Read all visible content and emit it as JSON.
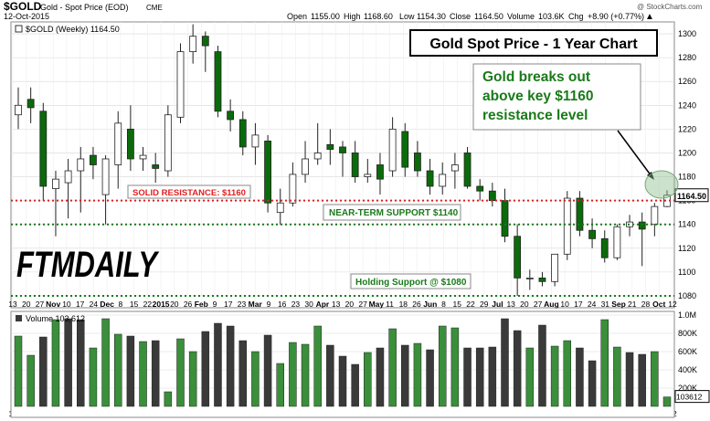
{
  "header": {
    "ticker": "$GOLD",
    "name": "Gold - Spot Price (EOD)",
    "exchange": "CME",
    "copyright": "@ StockCharts.com",
    "date": "12-Oct-2015",
    "open_label": "Open",
    "open_value": "1155.00",
    "high_label": "High",
    "high_value": "1168.60",
    "low_label": "Low",
    "low_value": "1154.30",
    "close_label": "Close",
    "close_value": "1164.50",
    "volume_label": "Volume",
    "volume_value": "103.6K",
    "chg_label": "Chg",
    "chg_value": "+8.90 (+0.77%)"
  },
  "chart_data": [
    {
      "type": "candlestick",
      "legend": "$GOLD (Weekly) 1164.50",
      "title": "Gold Spot Price - 1 Year Chart",
      "ylim": [
        1070,
        1310
      ],
      "y_ticks": [
        1080,
        1100,
        1120,
        1140,
        1160,
        1180,
        1200,
        1220,
        1240,
        1260,
        1280,
        1300
      ],
      "last_price_label": "1164.50",
      "x_tick_labels": [
        "13",
        "20",
        "27",
        "Nov",
        "10",
        "17",
        "24",
        "Dec",
        "8",
        "15",
        "22",
        "2015",
        "20",
        "26",
        "Feb",
        "9",
        "17",
        "23",
        "Mar",
        "9",
        "16",
        "23",
        "30",
        "Apr",
        "13",
        "20",
        "27",
        "May",
        "11",
        "18",
        "26",
        "Jun",
        "8",
        "15",
        "22",
        "29",
        "Jul",
        "13",
        "20",
        "27",
        "Aug",
        "10",
        "17",
        "24",
        "31",
        "Sep",
        "21",
        "28",
        "Oct",
        "12"
      ],
      "candles": [
        {
          "o": 1232,
          "h": 1255,
          "l": 1220,
          "c": 1240
        },
        {
          "o": 1245,
          "h": 1255,
          "l": 1225,
          "c": 1238
        },
        {
          "o": 1235,
          "h": 1242,
          "l": 1160,
          "c": 1172
        },
        {
          "o": 1170,
          "h": 1185,
          "l": 1130,
          "c": 1178
        },
        {
          "o": 1175,
          "h": 1195,
          "l": 1145,
          "c": 1185
        },
        {
          "o": 1185,
          "h": 1205,
          "l": 1150,
          "c": 1195
        },
        {
          "o": 1198,
          "h": 1205,
          "l": 1178,
          "c": 1190
        },
        {
          "o": 1165,
          "h": 1198,
          "l": 1140,
          "c": 1195
        },
        {
          "o": 1190,
          "h": 1235,
          "l": 1170,
          "c": 1225
        },
        {
          "o": 1220,
          "h": 1240,
          "l": 1185,
          "c": 1195
        },
        {
          "o": 1195,
          "h": 1205,
          "l": 1185,
          "c": 1198
        },
        {
          "o": 1190,
          "h": 1200,
          "l": 1175,
          "c": 1187
        },
        {
          "o": 1185,
          "h": 1240,
          "l": 1180,
          "c": 1232
        },
        {
          "o": 1230,
          "h": 1292,
          "l": 1225,
          "c": 1285
        },
        {
          "o": 1285,
          "h": 1308,
          "l": 1275,
          "c": 1298
        },
        {
          "o": 1298,
          "h": 1302,
          "l": 1268,
          "c": 1290
        },
        {
          "o": 1285,
          "h": 1290,
          "l": 1230,
          "c": 1235
        },
        {
          "o": 1235,
          "h": 1245,
          "l": 1218,
          "c": 1228
        },
        {
          "o": 1228,
          "h": 1235,
          "l": 1198,
          "c": 1205
        },
        {
          "o": 1205,
          "h": 1225,
          "l": 1190,
          "c": 1215
        },
        {
          "o": 1210,
          "h": 1215,
          "l": 1150,
          "c": 1158
        },
        {
          "o": 1150,
          "h": 1170,
          "l": 1140,
          "c": 1158
        },
        {
          "o": 1158,
          "h": 1192,
          "l": 1155,
          "c": 1182
        },
        {
          "o": 1182,
          "h": 1210,
          "l": 1175,
          "c": 1195
        },
        {
          "o": 1195,
          "h": 1225,
          "l": 1190,
          "c": 1200
        },
        {
          "o": 1207,
          "h": 1220,
          "l": 1190,
          "c": 1203
        },
        {
          "o": 1205,
          "h": 1210,
          "l": 1180,
          "c": 1200
        },
        {
          "o": 1200,
          "h": 1210,
          "l": 1175,
          "c": 1180
        },
        {
          "o": 1180,
          "h": 1195,
          "l": 1175,
          "c": 1182
        },
        {
          "o": 1190,
          "h": 1200,
          "l": 1165,
          "c": 1178
        },
        {
          "o": 1185,
          "h": 1230,
          "l": 1180,
          "c": 1220
        },
        {
          "o": 1218,
          "h": 1225,
          "l": 1180,
          "c": 1188
        },
        {
          "o": 1200,
          "h": 1210,
          "l": 1180,
          "c": 1185
        },
        {
          "o": 1185,
          "h": 1195,
          "l": 1165,
          "c": 1172
        },
        {
          "o": 1172,
          "h": 1192,
          "l": 1165,
          "c": 1182
        },
        {
          "o": 1185,
          "h": 1200,
          "l": 1170,
          "c": 1190
        },
        {
          "o": 1200,
          "h": 1205,
          "l": 1170,
          "c": 1172
        },
        {
          "o": 1172,
          "h": 1178,
          "l": 1160,
          "c": 1168
        },
        {
          "o": 1168,
          "h": 1175,
          "l": 1155,
          "c": 1160
        },
        {
          "o": 1160,
          "h": 1170,
          "l": 1125,
          "c": 1130
        },
        {
          "o": 1130,
          "h": 1140,
          "l": 1080,
          "c": 1095
        },
        {
          "o": 1095,
          "h": 1102,
          "l": 1085,
          "c": 1095
        },
        {
          "o": 1095,
          "h": 1100,
          "l": 1088,
          "c": 1092
        },
        {
          "o": 1092,
          "h": 1115,
          "l": 1088,
          "c": 1115
        },
        {
          "o": 1115,
          "h": 1168,
          "l": 1110,
          "c": 1162
        },
        {
          "o": 1162,
          "h": 1168,
          "l": 1130,
          "c": 1135
        },
        {
          "o": 1135,
          "h": 1145,
          "l": 1120,
          "c": 1128
        },
        {
          "o": 1128,
          "h": 1135,
          "l": 1108,
          "c": 1112
        },
        {
          "o": 1112,
          "h": 1140,
          "l": 1110,
          "c": 1138
        },
        {
          "o": 1138,
          "h": 1148,
          "l": 1130,
          "c": 1142
        },
        {
          "o": 1142,
          "h": 1150,
          "l": 1105,
          "c": 1136
        },
        {
          "o": 1140,
          "h": 1158,
          "l": 1130,
          "c": 1155
        },
        {
          "o": 1155,
          "h": 1168.6,
          "l": 1154.3,
          "c": 1164.5
        }
      ]
    },
    {
      "type": "bar",
      "legend": "Volume 103,612",
      "ylim": [
        0,
        1000000
      ],
      "y_ticks": [
        200000,
        400000,
        600000,
        800000,
        1000000
      ],
      "y_tick_labels": [
        "200K",
        "400K",
        "600K",
        "800K",
        "1.0M"
      ],
      "last_value_label": "103612",
      "values": [
        770000,
        560000,
        760000,
        950000,
        960000,
        950000,
        640000,
        960000,
        790000,
        770000,
        710000,
        720000,
        160000,
        740000,
        600000,
        820000,
        910000,
        880000,
        720000,
        600000,
        780000,
        470000,
        700000,
        680000,
        880000,
        670000,
        550000,
        460000,
        590000,
        640000,
        850000,
        670000,
        690000,
        620000,
        880000,
        860000,
        640000,
        640000,
        650000,
        960000,
        830000,
        640000,
        890000,
        660000,
        720000,
        640000,
        500000,
        950000,
        650000,
        590000,
        570000,
        600000,
        103612
      ],
      "up": [
        true,
        true,
        false,
        true,
        false,
        false,
        true,
        true,
        true,
        false,
        true,
        false,
        true,
        true,
        true,
        false,
        false,
        false,
        false,
        true,
        false,
        true,
        true,
        true,
        true,
        false,
        false,
        false,
        true,
        false,
        true,
        false,
        true,
        false,
        true,
        true,
        false,
        false,
        false,
        false,
        false,
        true,
        false,
        true,
        true,
        false,
        false,
        true,
        true,
        false,
        false,
        true,
        true
      ]
    }
  ],
  "annotations": {
    "callout_text": "Gold breaks out above key $1160 resistance level",
    "solid_resistance_label": "SOLID RESISTANCE: $1160",
    "near_term_support_label": "NEAR-TERM SUPPORT $1140",
    "holding_support_label": "Holding Support @ $1080",
    "logo_text": "FTMDAILY"
  },
  "colors": {
    "up": "#2a8a2a",
    "down": "#0b6b0b",
    "volume_up": "#3a8f3a",
    "volume_down": "#3a3a3a",
    "resistance": "#e02020",
    "support": "#1a7a1a",
    "callout_text": "#1a7a1a",
    "grid": "#d8d8d8"
  }
}
